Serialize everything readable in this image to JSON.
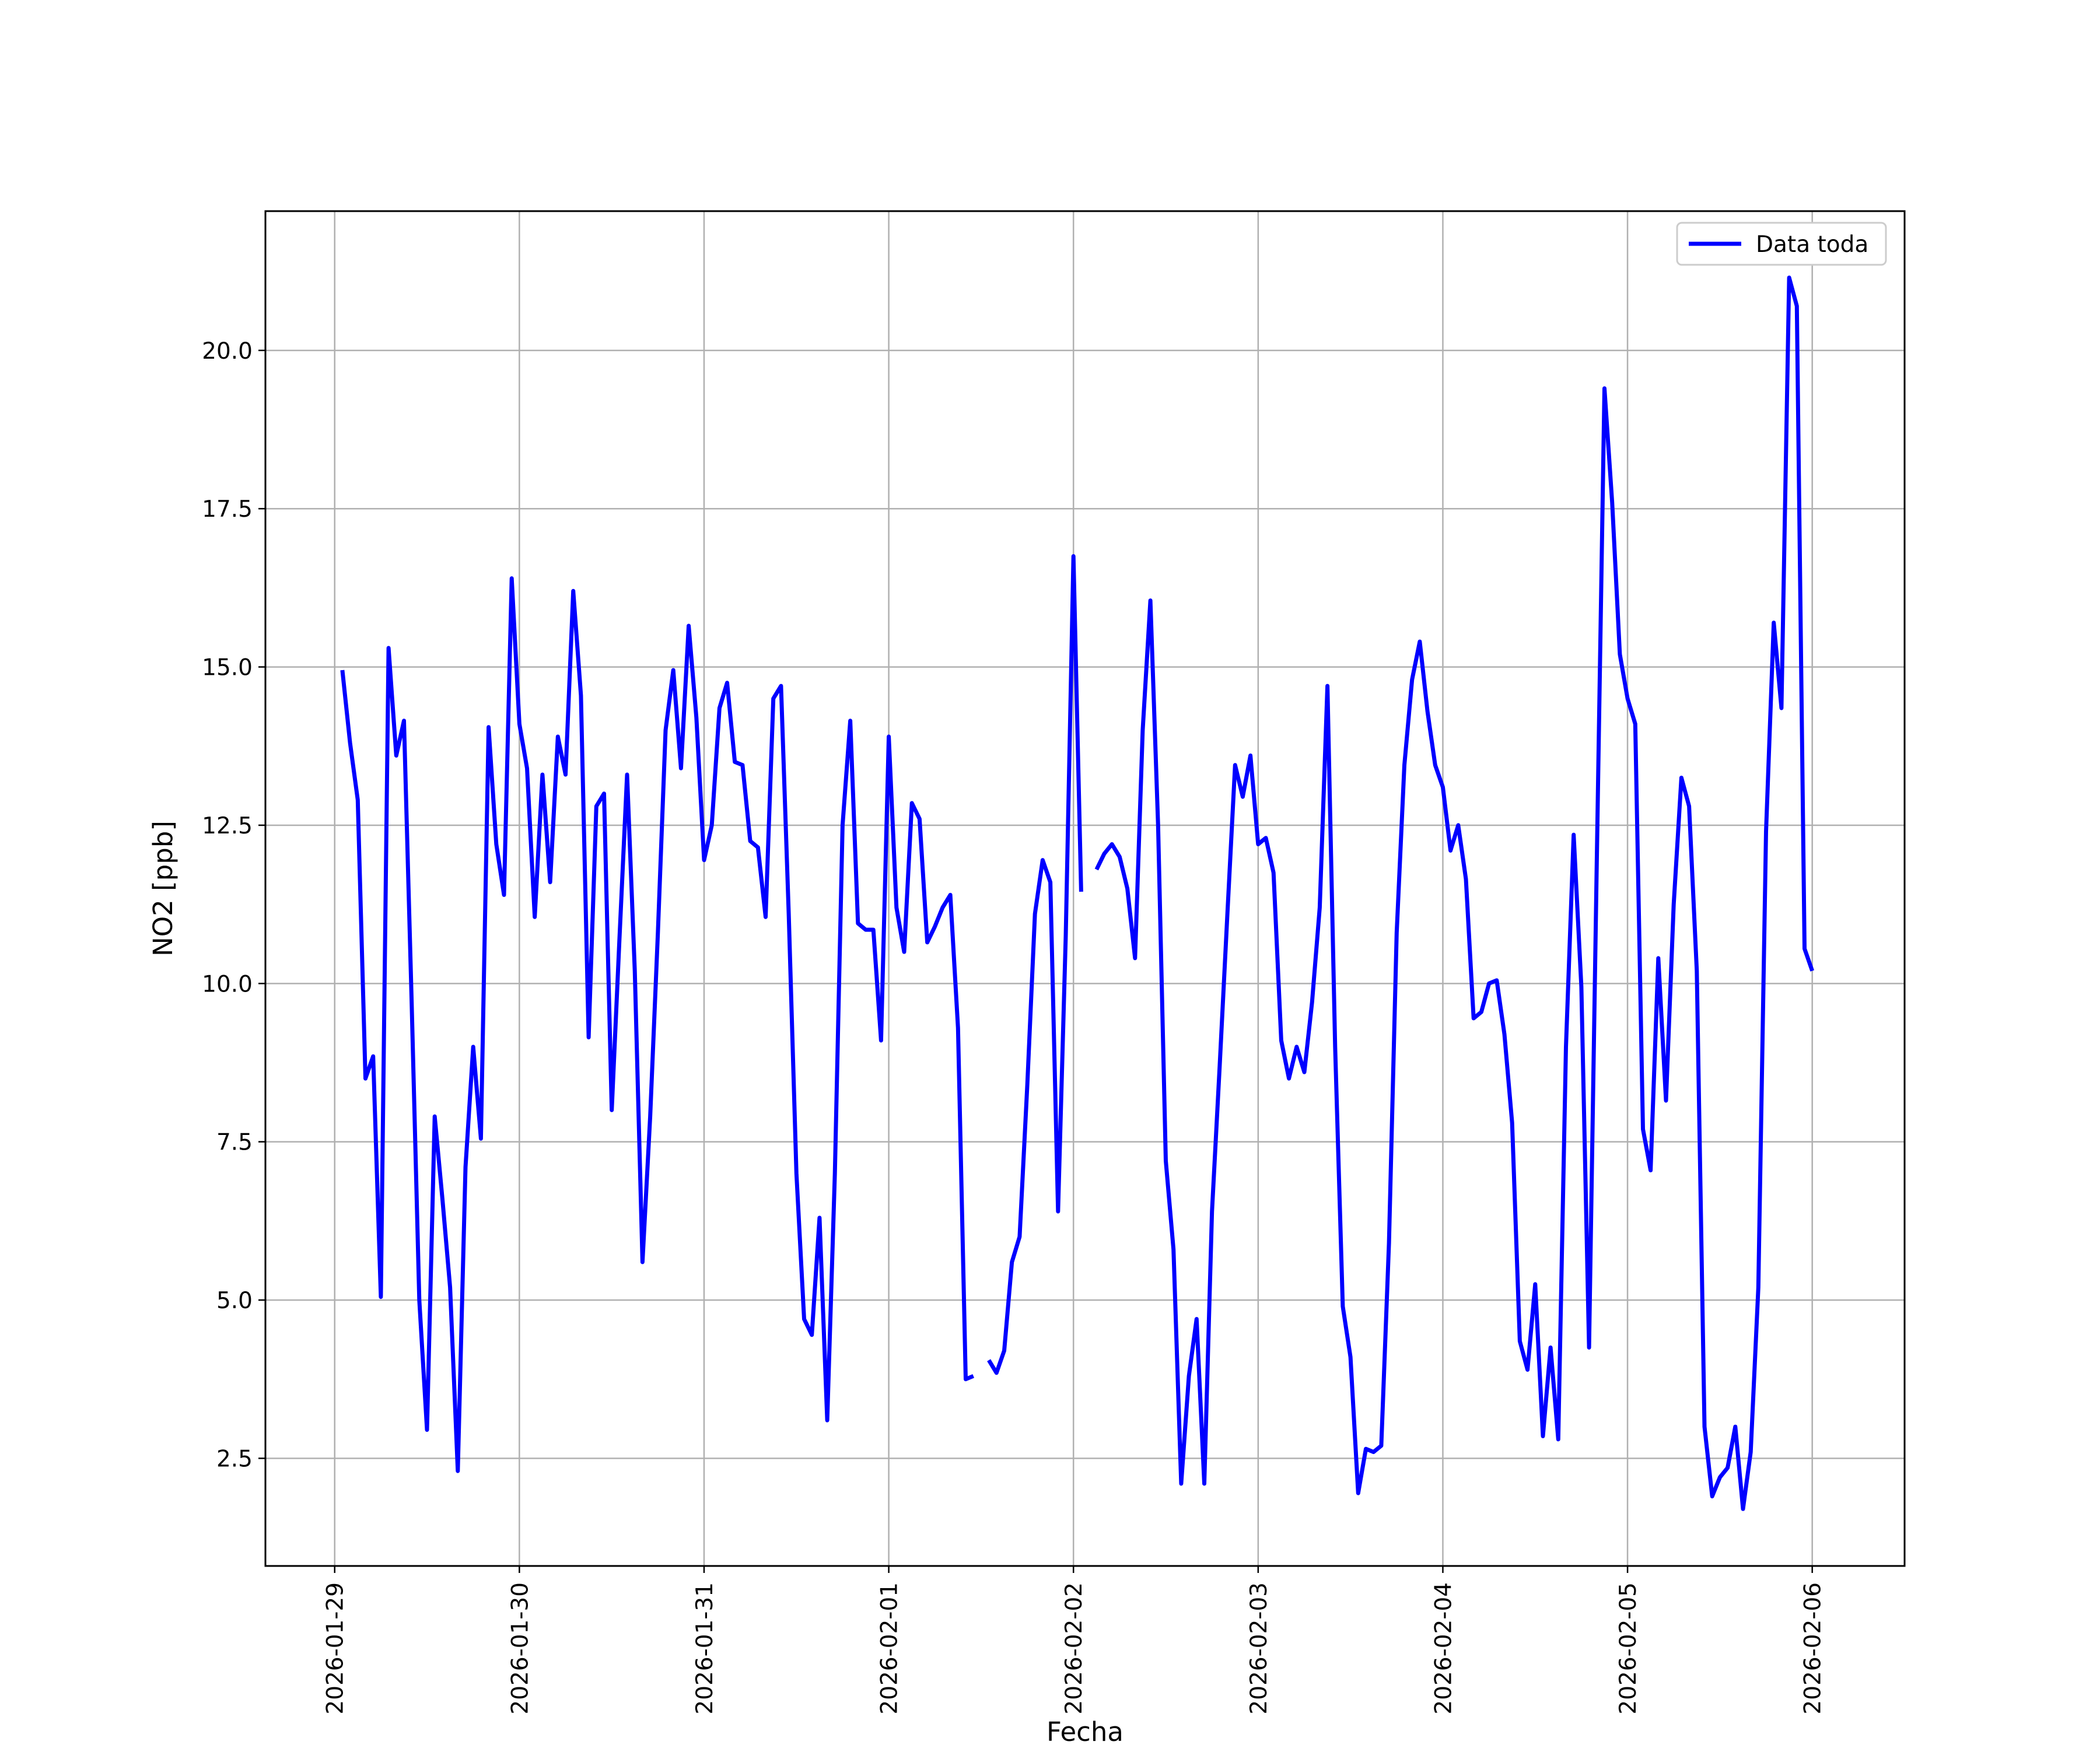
{
  "chart_data": {
    "type": "line",
    "xlabel": "Fecha",
    "ylabel": "NO2 [ppb]",
    "x_ticks": [
      "2026-01-29",
      "2026-01-30",
      "2026-01-31",
      "2026-02-01",
      "2026-02-02",
      "2026-02-03",
      "2026-02-04",
      "2026-02-05",
      "2026-02-06"
    ],
    "y_ticks": [
      "2.5",
      "5.0",
      "7.5",
      "10.0",
      "12.5",
      "15.0",
      "17.5",
      "20.0"
    ],
    "xlim": [
      "2026-01-28 15:00",
      "2026-02-06 12:00"
    ],
    "ylim": [
      0.8,
      22.2
    ],
    "grid": true,
    "legend_position": "top-right",
    "series_color": "#0000ff",
    "series": [
      {
        "name": "Data toda",
        "segments": [
          [
            [
              "2026-01-29 01:00",
              14.95
            ],
            [
              "2026-01-29 02:00",
              13.8
            ],
            [
              "2026-01-29 03:00",
              12.9
            ],
            [
              "2026-01-29 04:00",
              8.5
            ],
            [
              "2026-01-29 05:00",
              8.85
            ],
            [
              "2026-01-29 06:00",
              5.05
            ],
            [
              "2026-01-29 07:00",
              15.3
            ],
            [
              "2026-01-29 08:00",
              13.6
            ],
            [
              "2026-01-29 09:00",
              14.15
            ],
            [
              "2026-01-29 10:00",
              9.7
            ],
            [
              "2026-01-29 11:00",
              5.0
            ],
            [
              "2026-01-29 12:00",
              2.95
            ],
            [
              "2026-01-29 13:00",
              7.9
            ],
            [
              "2026-01-29 14:00",
              6.6
            ],
            [
              "2026-01-29 15:00",
              5.2
            ],
            [
              "2026-01-29 16:00",
              2.3
            ],
            [
              "2026-01-29 17:00",
              7.1
            ],
            [
              "2026-01-29 18:00",
              9.0
            ],
            [
              "2026-01-29 19:00",
              7.55
            ],
            [
              "2026-01-29 20:00",
              14.05
            ],
            [
              "2026-01-29 21:00",
              12.2
            ],
            [
              "2026-01-29 22:00",
              11.4
            ],
            [
              "2026-01-29 23:00",
              16.4
            ],
            [
              "2026-01-30 00:00",
              14.1
            ],
            [
              "2026-01-30 01:00",
              13.4
            ],
            [
              "2026-01-30 02:00",
              11.05
            ],
            [
              "2026-01-30 03:00",
              13.3
            ],
            [
              "2026-01-30 04:00",
              11.6
            ],
            [
              "2026-01-30 05:00",
              13.9
            ],
            [
              "2026-01-30 06:00",
              13.3
            ],
            [
              "2026-01-30 07:00",
              16.2
            ],
            [
              "2026-01-30 08:00",
              14.55
            ],
            [
              "2026-01-30 09:00",
              9.15
            ],
            [
              "2026-01-30 10:00",
              12.8
            ],
            [
              "2026-01-30 11:00",
              13.0
            ],
            [
              "2026-01-30 12:00",
              8.0
            ],
            [
              "2026-01-30 13:00",
              10.7
            ],
            [
              "2026-01-30 14:00",
              13.3
            ],
            [
              "2026-01-30 15:00",
              10.2
            ],
            [
              "2026-01-30 16:00",
              5.6
            ],
            [
              "2026-01-30 17:00",
              7.9
            ],
            [
              "2026-01-30 18:00",
              10.8
            ],
            [
              "2026-01-30 19:00",
              14.0
            ],
            [
              "2026-01-30 20:00",
              14.95
            ],
            [
              "2026-01-30 21:00",
              13.4
            ],
            [
              "2026-01-30 22:00",
              15.65
            ],
            [
              "2026-01-30 23:00",
              14.2
            ],
            [
              "2026-01-31 00:00",
              11.95
            ],
            [
              "2026-01-31 01:00",
              12.5
            ],
            [
              "2026-01-31 02:00",
              14.35
            ],
            [
              "2026-01-31 03:00",
              14.75
            ],
            [
              "2026-01-31 04:00",
              13.5
            ],
            [
              "2026-01-31 05:00",
              13.45
            ],
            [
              "2026-01-31 06:00",
              12.25
            ],
            [
              "2026-01-31 07:00",
              12.15
            ],
            [
              "2026-01-31 08:00",
              11.05
            ],
            [
              "2026-01-31 09:00",
              14.5
            ],
            [
              "2026-01-31 10:00",
              14.7
            ],
            [
              "2026-01-31 11:00",
              11.1
            ],
            [
              "2026-01-31 12:00",
              7.0
            ],
            [
              "2026-01-31 13:00",
              4.7
            ],
            [
              "2026-01-31 14:00",
              4.45
            ],
            [
              "2026-01-31 15:00",
              6.3
            ],
            [
              "2026-01-31 16:00",
              3.1
            ],
            [
              "2026-01-31 17:00",
              7.0
            ],
            [
              "2026-01-31 18:00",
              12.5
            ],
            [
              "2026-01-31 19:00",
              14.15
            ],
            [
              "2026-01-31 20:00",
              10.95
            ],
            [
              "2026-01-31 21:00",
              10.85
            ],
            [
              "2026-01-31 22:00",
              10.85
            ],
            [
              "2026-01-31 23:00",
              9.1
            ],
            [
              "2026-02-01 00:00",
              13.9
            ],
            [
              "2026-02-01 01:00",
              11.2
            ],
            [
              "2026-02-01 02:00",
              10.5
            ],
            [
              "2026-02-01 03:00",
              12.85
            ],
            [
              "2026-02-01 04:00",
              12.6
            ],
            [
              "2026-02-01 05:00",
              10.65
            ],
            [
              "2026-02-01 06:00",
              10.9
            ],
            [
              "2026-02-01 07:00",
              11.2
            ],
            [
              "2026-02-01 08:00",
              11.4
            ],
            [
              "2026-02-01 09:00",
              9.3
            ],
            [
              "2026-02-01 10:00",
              3.75
            ],
            [
              "2026-02-01 11:00",
              3.8
            ]
          ],
          [
            [
              "2026-02-01 13:00",
              4.05
            ],
            [
              "2026-02-01 14:00",
              3.85
            ],
            [
              "2026-02-01 15:00",
              4.2
            ],
            [
              "2026-02-01 16:00",
              5.6
            ],
            [
              "2026-02-01 17:00",
              6.0
            ],
            [
              "2026-02-01 18:00",
              8.4
            ],
            [
              "2026-02-01 19:00",
              11.1
            ],
            [
              "2026-02-01 20:00",
              11.95
            ],
            [
              "2026-02-01 21:00",
              11.6
            ],
            [
              "2026-02-01 22:00",
              6.4
            ],
            [
              "2026-02-01 23:00",
              10.75
            ],
            [
              "2026-02-02 00:00",
              16.75
            ],
            [
              "2026-02-02 01:00",
              11.45
            ]
          ],
          [
            [
              "2026-02-02 03:00",
              11.8
            ],
            [
              "2026-02-02 04:00",
              12.05
            ],
            [
              "2026-02-02 05:00",
              12.2
            ],
            [
              "2026-02-02 06:00",
              12.0
            ],
            [
              "2026-02-02 07:00",
              11.5
            ],
            [
              "2026-02-02 08:00",
              10.4
            ],
            [
              "2026-02-02 09:00",
              14.0
            ],
            [
              "2026-02-02 10:00",
              16.05
            ],
            [
              "2026-02-02 11:00",
              12.5
            ],
            [
              "2026-02-02 12:00",
              7.2
            ],
            [
              "2026-02-02 13:00",
              5.8
            ],
            [
              "2026-02-02 14:00",
              2.1
            ],
            [
              "2026-02-02 15:00",
              3.8
            ],
            [
              "2026-02-02 16:00",
              4.7
            ],
            [
              "2026-02-02 17:00",
              2.1
            ],
            [
              "2026-02-02 18:00",
              6.4
            ],
            [
              "2026-02-02 19:00",
              8.7
            ],
            [
              "2026-02-02 20:00",
              11.1
            ],
            [
              "2026-02-02 21:00",
              13.45
            ],
            [
              "2026-02-02 22:00",
              12.95
            ],
            [
              "2026-02-02 23:00",
              13.6
            ],
            [
              "2026-02-03 00:00",
              12.2
            ],
            [
              "2026-02-03 01:00",
              12.3
            ],
            [
              "2026-02-03 02:00",
              11.75
            ],
            [
              "2026-02-03 03:00",
              9.1
            ],
            [
              "2026-02-03 04:00",
              8.5
            ],
            [
              "2026-02-03 05:00",
              9.0
            ],
            [
              "2026-02-03 06:00",
              8.6
            ],
            [
              "2026-02-03 07:00",
              9.7
            ],
            [
              "2026-02-03 08:00",
              11.2
            ],
            [
              "2026-02-03 09:00",
              14.7
            ],
            [
              "2026-02-03 10:00",
              9.0
            ],
            [
              "2026-02-03 11:00",
              4.9
            ],
            [
              "2026-02-03 12:00",
              4.1
            ],
            [
              "2026-02-03 13:00",
              1.95
            ],
            [
              "2026-02-03 14:00",
              2.65
            ],
            [
              "2026-02-03 15:00",
              2.6
            ],
            [
              "2026-02-03 16:00",
              2.7
            ],
            [
              "2026-02-03 17:00",
              5.9
            ],
            [
              "2026-02-03 18:00",
              10.8
            ],
            [
              "2026-02-03 19:00",
              13.45
            ],
            [
              "2026-02-03 20:00",
              14.8
            ],
            [
              "2026-02-03 21:00",
              15.4
            ],
            [
              "2026-02-03 22:00",
              14.3
            ],
            [
              "2026-02-03 23:00",
              13.45
            ],
            [
              "2026-02-04 00:00",
              13.1
            ],
            [
              "2026-02-04 01:00",
              12.1
            ],
            [
              "2026-02-04 02:00",
              12.5
            ],
            [
              "2026-02-04 03:00",
              11.65
            ],
            [
              "2026-02-04 04:00",
              9.45
            ],
            [
              "2026-02-04 05:00",
              9.55
            ],
            [
              "2026-02-04 06:00",
              10.0
            ],
            [
              "2026-02-04 07:00",
              10.05
            ],
            [
              "2026-02-04 08:00",
              9.2
            ],
            [
              "2026-02-04 09:00",
              7.8
            ],
            [
              "2026-02-04 10:00",
              4.35
            ],
            [
              "2026-02-04 11:00",
              3.9
            ],
            [
              "2026-02-04 12:00",
              5.25
            ],
            [
              "2026-02-04 13:00",
              2.85
            ],
            [
              "2026-02-04 14:00",
              4.25
            ],
            [
              "2026-02-04 15:00",
              2.8
            ],
            [
              "2026-02-04 16:00",
              9.0
            ],
            [
              "2026-02-04 17:00",
              12.35
            ],
            [
              "2026-02-04 18:00",
              9.95
            ],
            [
              "2026-02-04 19:00",
              4.25
            ],
            [
              "2026-02-04 20:00",
              11.9
            ],
            [
              "2026-02-04 21:00",
              19.4
            ],
            [
              "2026-02-04 22:00",
              17.6
            ],
            [
              "2026-02-04 23:00",
              15.2
            ],
            [
              "2026-02-05 00:00",
              14.5
            ],
            [
              "2026-02-05 01:00",
              14.1
            ],
            [
              "2026-02-05 02:00",
              7.7
            ],
            [
              "2026-02-05 03:00",
              7.05
            ],
            [
              "2026-02-05 04:00",
              10.4
            ],
            [
              "2026-02-05 05:00",
              8.15
            ],
            [
              "2026-02-05 06:00",
              11.25
            ],
            [
              "2026-02-05 07:00",
              13.25
            ],
            [
              "2026-02-05 08:00",
              12.8
            ],
            [
              "2026-02-05 09:00",
              10.2
            ],
            [
              "2026-02-05 10:00",
              3.0
            ],
            [
              "2026-02-05 11:00",
              1.9
            ],
            [
              "2026-02-05 12:00",
              2.2
            ],
            [
              "2026-02-05 13:00",
              2.35
            ],
            [
              "2026-02-05 14:00",
              3.0
            ],
            [
              "2026-02-05 15:00",
              1.7
            ],
            [
              "2026-02-05 16:00",
              2.6
            ],
            [
              "2026-02-05 17:00",
              5.2
            ],
            [
              "2026-02-05 18:00",
              12.4
            ],
            [
              "2026-02-05 19:00",
              15.7
            ],
            [
              "2026-02-05 20:00",
              14.35
            ],
            [
              "2026-02-05 21:00",
              21.15
            ],
            [
              "2026-02-05 22:00",
              20.7
            ],
            [
              "2026-02-05 23:00",
              10.55
            ],
            [
              "2026-02-06 00:00",
              10.2
            ]
          ]
        ]
      }
    ]
  }
}
